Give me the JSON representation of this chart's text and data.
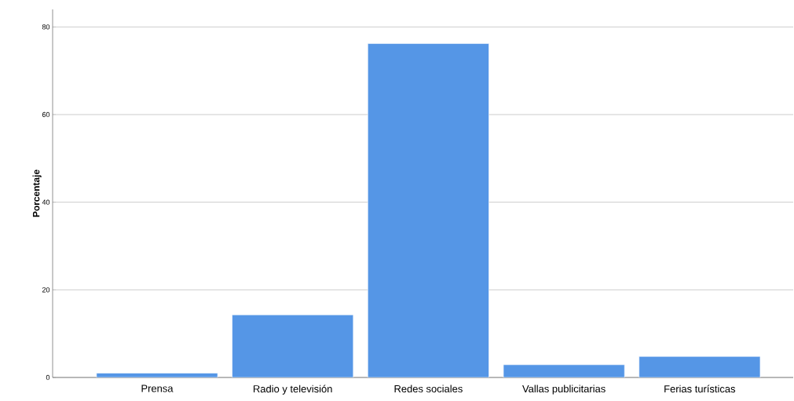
{
  "chart_data": {
    "type": "bar",
    "ylabel": "Porcentaje",
    "categories": [
      "Prensa",
      "Radio y televisión",
      "Redes sociales",
      "Vallas publicitarias",
      "Ferias turísticas"
    ],
    "values": [
      1.0,
      14.3,
      76.2,
      2.9,
      4.8
    ],
    "color": "#5596e6",
    "ylim": [
      0,
      84
    ],
    "yticks": [
      0,
      20,
      40,
      60,
      80
    ],
    "grid": "y"
  }
}
